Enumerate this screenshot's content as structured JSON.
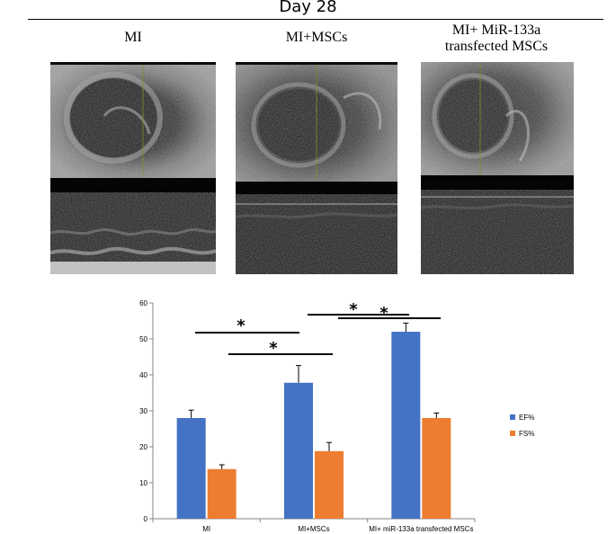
{
  "figure": {
    "title": "Day 28",
    "panels": [
      {
        "label_lines": [
          "MI"
        ]
      },
      {
        "label_lines": [
          "MI+MSCs"
        ]
      },
      {
        "label_lines": [
          "MI+ MiR-133a",
          "transfected MSCs"
        ]
      }
    ]
  },
  "chart_data": {
    "type": "bar",
    "categories": [
      "MI",
      "MI+MSCs",
      "MI+ miR-133a transfected MSCs"
    ],
    "series": [
      {
        "name": "EF%",
        "values": [
          28,
          37.8,
          52
        ],
        "error": [
          2.2,
          4.8,
          2.4
        ],
        "color": "#4472C4"
      },
      {
        "name": "FS%",
        "values": [
          13.8,
          18.8,
          28
        ],
        "error": [
          1.2,
          2.4,
          1.4
        ],
        "color": "#ED7D31"
      }
    ],
    "ylim": [
      0,
      60
    ],
    "yticks": [
      0,
      10,
      20,
      30,
      40,
      50,
      60
    ],
    "grid": false,
    "legend": "right",
    "significance": [
      {
        "label": "*",
        "from_category": 0,
        "to_category": 1
      },
      {
        "label": "*",
        "from_category": 0,
        "to_category": 1
      },
      {
        "label": "*",
        "from_category": 1,
        "to_category": 2
      },
      {
        "label": "*",
        "from_category": 1,
        "to_category": 2
      }
    ]
  }
}
